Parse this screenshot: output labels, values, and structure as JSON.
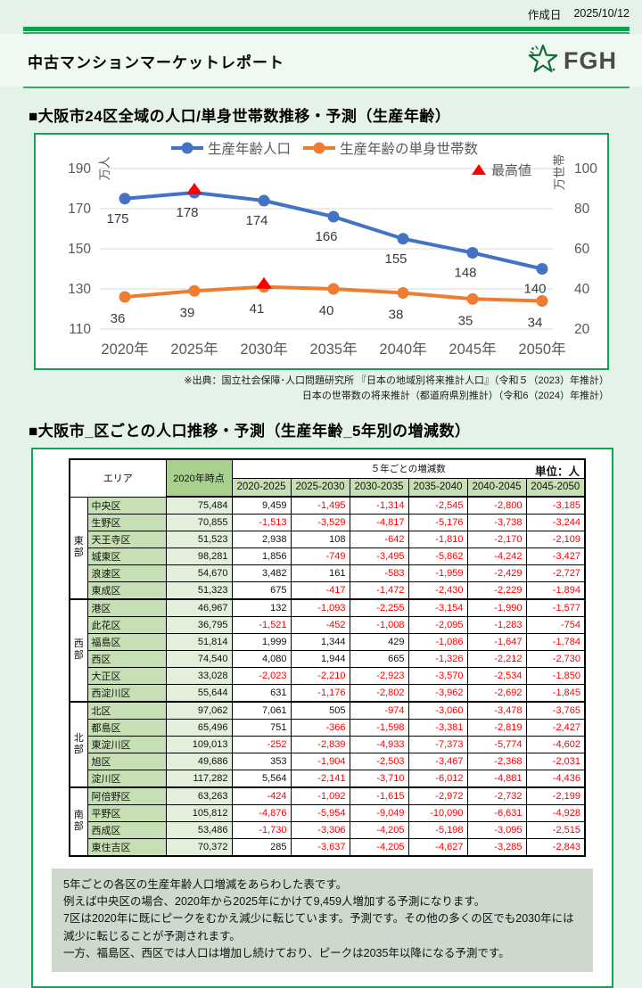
{
  "theme": {
    "accent_green": "#0CA24E",
    "panel_border_green": "#12A455",
    "page_bg": "#E4F2E8",
    "band_bg": "#EFF9F2",
    "note_bg": "#CCD9CC",
    "table_header_green": "#C6E0B4",
    "table_base_header_green": "#A9D08E",
    "table_base_cell_green": "#E2EFDA",
    "negative_red": "#FF0000",
    "series_blue": "#4472C4",
    "series_orange": "#ED7D31",
    "peak_red": "#FF0000",
    "axis_text_gray": "#595959",
    "gridline_gray": "#D9D9D9"
  },
  "header": {
    "date_label": "作成日",
    "date_value": "2025/10/12",
    "title": "中古マンションマーケットレポート",
    "logo_text": "FGH"
  },
  "section1": {
    "heading": "■大阪市24区全域の人口/単身世帯数推移・予測（生産年齢）",
    "source_line1": "※出典：国立社会保障･人口問題研究所 『日本の地域別将来推計人口』（令和５（2023）年推計）",
    "source_line2": "日本の世帯数の将来推計（都道府県別推計）（令和6（2024）年推計）"
  },
  "chart_data": {
    "type": "line",
    "categories": [
      "2020年",
      "2025年",
      "2030年",
      "2035年",
      "2040年",
      "2045年",
      "2050年"
    ],
    "series": [
      {
        "name": "生産年齢人口",
        "axis": "left",
        "color": "#4472C4",
        "values": [
          175,
          178,
          174,
          166,
          155,
          148,
          140
        ],
        "peak_index": 1
      },
      {
        "name": "生産年齢の単身世帯数",
        "axis": "right",
        "color": "#ED7D31",
        "values": [
          36,
          39,
          41,
          40,
          38,
          35,
          34
        ],
        "peak_index": 2
      }
    ],
    "left_axis": {
      "unit": "万人",
      "ticks": [
        190,
        170,
        150,
        130,
        110
      ],
      "min": 110,
      "max": 190
    },
    "right_axis": {
      "unit": "万世帯",
      "ticks": [
        100,
        80,
        60,
        40,
        20
      ],
      "min": 20,
      "max": 100
    },
    "peak_legend": "最高値",
    "grid": true,
    "legend_position": "top"
  },
  "section2": {
    "heading": "■大阪市_区ごとの人口推移・予測（生産年齢_5年別の増減数）",
    "table": {
      "area_header": "エリア",
      "base_header": "2020年時点",
      "span_header": "５年ごとの増減数",
      "unit_label": "単位：人",
      "period_headers": [
        "2020-2025",
        "2025-2030",
        "2030-2035",
        "2035-2040",
        "2040-2045",
        "2045-2050"
      ],
      "groups": [
        {
          "name": "東部",
          "rows": [
            {
              "ward": "中央区",
              "base": "75,484",
              "changes": [
                "9,459",
                "-1,495",
                "-1,314",
                "-2,545",
                "-2,800",
                "-3,185"
              ]
            },
            {
              "ward": "生野区",
              "base": "70,855",
              "changes": [
                "-1,513",
                "-3,529",
                "-4,817",
                "-5,176",
                "-3,738",
                "-3,244"
              ]
            },
            {
              "ward": "天王寺区",
              "base": "51,523",
              "changes": [
                "2,938",
                "108",
                "-642",
                "-1,810",
                "-2,170",
                "-2,109"
              ]
            },
            {
              "ward": "城東区",
              "base": "98,281",
              "changes": [
                "1,856",
                "-749",
                "-3,495",
                "-5,862",
                "-4,242",
                "-3,427"
              ]
            },
            {
              "ward": "浪速区",
              "base": "54,670",
              "changes": [
                "3,482",
                "161",
                "-583",
                "-1,959",
                "-2,429",
                "-2,727"
              ]
            },
            {
              "ward": "東成区",
              "base": "51,323",
              "changes": [
                "675",
                "-417",
                "-1,472",
                "-2,430",
                "-2,229",
                "-1,894"
              ]
            }
          ]
        },
        {
          "name": "西部",
          "rows": [
            {
              "ward": "港区",
              "base": "46,967",
              "changes": [
                "132",
                "-1,093",
                "-2,255",
                "-3,154",
                "-1,990",
                "-1,577"
              ]
            },
            {
              "ward": "此花区",
              "base": "36,795",
              "changes": [
                "-1,521",
                "-452",
                "-1,008",
                "-2,095",
                "-1,283",
                "-754"
              ]
            },
            {
              "ward": "福島区",
              "base": "51,814",
              "changes": [
                "1,999",
                "1,344",
                "429",
                "-1,086",
                "-1,647",
                "-1,784"
              ]
            },
            {
              "ward": "西区",
              "base": "74,540",
              "changes": [
                "4,080",
                "1,944",
                "665",
                "-1,326",
                "-2,212",
                "-2,730"
              ]
            },
            {
              "ward": "大正区",
              "base": "33,028",
              "changes": [
                "-2,023",
                "-2,210",
                "-2,923",
                "-3,570",
                "-2,534",
                "-1,850"
              ]
            },
            {
              "ward": "西淀川区",
              "base": "55,644",
              "changes": [
                "631",
                "-1,176",
                "-2,802",
                "-3,962",
                "-2,692",
                "-1,845"
              ]
            }
          ]
        },
        {
          "name": "北部",
          "rows": [
            {
              "ward": "北区",
              "base": "97,062",
              "changes": [
                "7,061",
                "505",
                "-974",
                "-3,060",
                "-3,478",
                "-3,765"
              ]
            },
            {
              "ward": "都島区",
              "base": "65,496",
              "changes": [
                "751",
                "-366",
                "-1,598",
                "-3,381",
                "-2,819",
                "-2,427"
              ]
            },
            {
              "ward": "東淀川区",
              "base": "109,013",
              "changes": [
                "-252",
                "-2,839",
                "-4,933",
                "-7,373",
                "-5,774",
                "-4,602"
              ]
            },
            {
              "ward": "旭区",
              "base": "49,686",
              "changes": [
                "353",
                "-1,904",
                "-2,503",
                "-3,467",
                "-2,368",
                "-2,031"
              ]
            },
            {
              "ward": "淀川区",
              "base": "117,282",
              "changes": [
                "5,564",
                "-2,141",
                "-3,710",
                "-6,012",
                "-4,881",
                "-4,436"
              ]
            }
          ]
        },
        {
          "name": "南部",
          "rows": [
            {
              "ward": "阿倍野区",
              "base": "63,263",
              "changes": [
                "-424",
                "-1,092",
                "-1,615",
                "-2,972",
                "-2,732",
                "-2,199"
              ]
            },
            {
              "ward": "平野区",
              "base": "105,812",
              "changes": [
                "-4,876",
                "-5,954",
                "-9,049",
                "-10,090",
                "-6,631",
                "-4,928"
              ]
            },
            {
              "ward": "西成区",
              "base": "53,486",
              "changes": [
                "-1,730",
                "-3,306",
                "-4,205",
                "-5,198",
                "-3,095",
                "-2,515"
              ]
            },
            {
              "ward": "東住吉区",
              "base": "70,372",
              "changes": [
                "285",
                "-3,637",
                "-4,205",
                "-4,627",
                "-3,285",
                "-2,843"
              ]
            }
          ]
        }
      ]
    },
    "note_lines": [
      "5年ごとの各区の生産年齢人口増減をあらわした表です。",
      "例えば中央区の場合、2020年から2025年にかけて9,459人増加する予測になります。",
      "7区は2020年に既にピークをむかえ減少に転じています。予測です。その他の多くの区でも2030年には減少に転じることが予測されます。",
      "一方、福島区、西区では人口は増加し続けており、ピークは2035年以降になる予測です。"
    ]
  }
}
